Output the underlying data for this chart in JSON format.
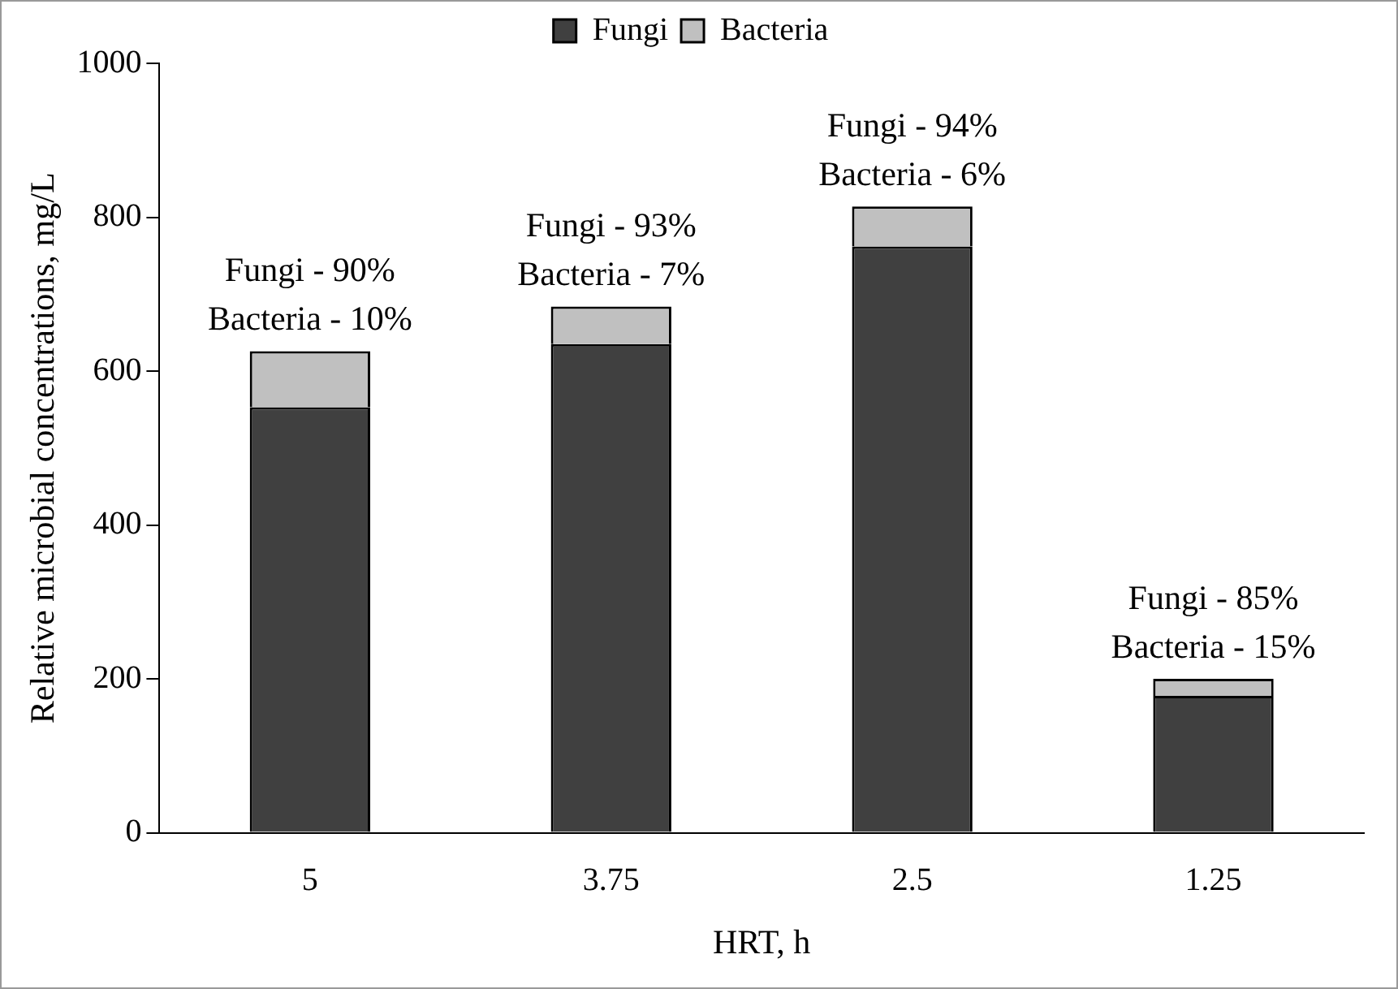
{
  "chart_data": {
    "type": "bar",
    "stacked": true,
    "xlabel": "HRT, h",
    "ylabel": "Relative microbial concentrations, mg/L",
    "categories": [
      "5",
      "3.75",
      "2.5",
      "1.25"
    ],
    "series": [
      {
        "name": "Fungi",
        "color": "#404040",
        "values": [
          553,
          635,
          762,
          178
        ]
      },
      {
        "name": "Bacteria",
        "color": "#c0c0c0",
        "values": [
          73,
          49,
          52,
          22
        ]
      }
    ],
    "ylim": [
      0,
      1000
    ],
    "yticks": [
      0,
      200,
      400,
      600,
      800,
      1000
    ],
    "grid": false,
    "legend": "top",
    "annotations": [
      {
        "text": "Fungi - 90%\nBacteria - 10%",
        "x": "5",
        "y": 626
      },
      {
        "text": "Fungi - 93%\nBacteria - 7%",
        "x": "3.75",
        "y": 684
      },
      {
        "text": "Fungi - 94%\nBacteria - 6%",
        "x": "2.5",
        "y": 814
      },
      {
        "text": "Fungi - 85%\nBacteria - 15%",
        "x": "1.25",
        "y": 200
      }
    ]
  }
}
